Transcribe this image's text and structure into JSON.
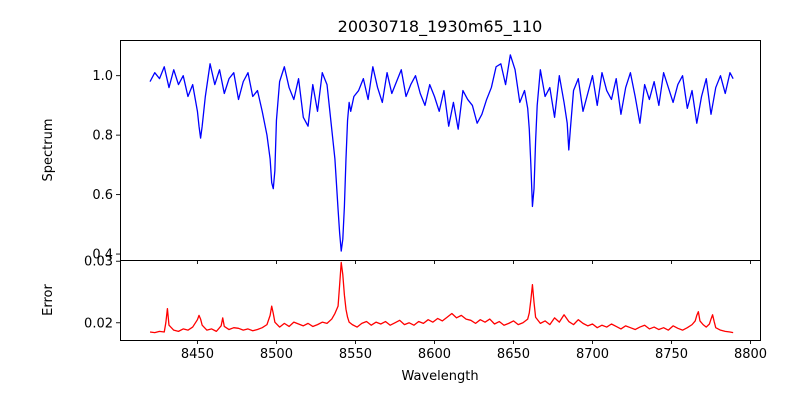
{
  "chart_data": [
    {
      "type": "line",
      "title": "20030718_1930m65_110",
      "xlabel": "",
      "ylabel": "Spectrum",
      "xlim": [
        8401,
        8806
      ],
      "ylim": [
        0.38,
        1.12
      ],
      "yticks": [
        0.4,
        0.6,
        0.8,
        1.0
      ],
      "ytick_labels": [
        "0.4",
        "0.6",
        "0.8",
        "1.0"
      ],
      "color": "#0000ff",
      "series": [
        {
          "x": [
            8420,
            8423,
            8426,
            8429,
            8432,
            8435,
            8438,
            8441,
            8444,
            8447,
            8450,
            8451,
            8452,
            8453,
            8454,
            8455,
            8458,
            8461,
            8464,
            8467,
            8470,
            8473,
            8476,
            8479,
            8482,
            8485,
            8488,
            8491,
            8494,
            8496,
            8497,
            8498,
            8499,
            8500,
            8502,
            8505,
            8508,
            8511,
            8514,
            8517,
            8520,
            8523,
            8526,
            8529,
            8532,
            8535,
            8537,
            8539,
            8540,
            8541,
            8542,
            8543,
            8544,
            8545,
            8546,
            8547,
            8549,
            8552,
            8555,
            8558,
            8561,
            8564,
            8567,
            8570,
            8573,
            8576,
            8579,
            8582,
            8585,
            8588,
            8591,
            8594,
            8597,
            8600,
            8603,
            8606,
            8609,
            8612,
            8615,
            8618,
            8621,
            8624,
            8627,
            8630,
            8633,
            8636,
            8639,
            8642,
            8645,
            8648,
            8651,
            8654,
            8657,
            8659,
            8660,
            8661,
            8662,
            8663,
            8664,
            8665,
            8667,
            8670,
            8673,
            8676,
            8679,
            8682,
            8684,
            8685,
            8686,
            8688,
            8691,
            8694,
            8697,
            8700,
            8703,
            8706,
            8709,
            8712,
            8715,
            8718,
            8721,
            8724,
            8727,
            8730,
            8733,
            8736,
            8739,
            8742,
            8745,
            8748,
            8751,
            8754,
            8757,
            8760,
            8763,
            8766,
            8769,
            8772,
            8775,
            8778,
            8781,
            8784,
            8787,
            8789
          ],
          "values": [
            0.98,
            1.01,
            0.99,
            1.03,
            0.96,
            1.02,
            0.97,
            1.0,
            0.93,
            0.97,
            0.88,
            0.83,
            0.79,
            0.83,
            0.88,
            0.93,
            1.04,
            0.97,
            1.02,
            0.94,
            0.99,
            1.01,
            0.92,
            0.98,
            1.01,
            0.93,
            0.95,
            0.88,
            0.8,
            0.72,
            0.64,
            0.62,
            0.68,
            0.85,
            0.98,
            1.03,
            0.96,
            0.92,
            0.99,
            0.86,
            0.83,
            0.97,
            0.88,
            1.01,
            0.97,
            0.82,
            0.72,
            0.55,
            0.47,
            0.41,
            0.45,
            0.56,
            0.72,
            0.85,
            0.91,
            0.88,
            0.93,
            0.95,
            0.99,
            0.92,
            1.03,
            0.96,
            0.91,
            1.01,
            0.94,
            0.98,
            1.02,
            0.93,
            0.97,
            1.0,
            0.94,
            0.9,
            0.97,
            0.93,
            0.88,
            0.95,
            0.83,
            0.91,
            0.82,
            0.95,
            0.92,
            0.9,
            0.84,
            0.87,
            0.92,
            0.96,
            1.03,
            1.04,
            0.97,
            1.07,
            1.02,
            0.91,
            0.95,
            0.89,
            0.82,
            0.7,
            0.56,
            0.62,
            0.78,
            0.9,
            1.02,
            0.93,
            0.96,
            0.86,
            1.0,
            0.91,
            0.84,
            0.75,
            0.82,
            0.95,
            0.99,
            0.88,
            0.94,
            1.0,
            0.9,
            1.01,
            0.95,
            0.92,
            0.99,
            0.87,
            0.96,
            1.01,
            0.93,
            0.84,
            0.97,
            0.92,
            0.98,
            0.9,
            1.01,
            0.96,
            0.91,
            0.97,
            1.0,
            0.89,
            0.95,
            0.84,
            0.93,
            0.99,
            0.87,
            0.96,
            1.0,
            0.94,
            1.01,
            0.99
          ]
        }
      ]
    },
    {
      "type": "line",
      "title": "",
      "xlabel": "Wavelength",
      "ylabel": "Error",
      "xlim": [
        8401,
        8806
      ],
      "ylim": [
        0.0172,
        0.0302
      ],
      "xticks": [
        8450,
        8500,
        8550,
        8600,
        8650,
        8700,
        8750,
        8800
      ],
      "xtick_labels": [
        "8450",
        "8500",
        "8550",
        "8600",
        "8650",
        "8700",
        "8750",
        "8800"
      ],
      "yticks": [
        0.02,
        0.03
      ],
      "ytick_labels": [
        "0.02",
        "0.03"
      ],
      "color": "#ff0000",
      "series": [
        {
          "x": [
            8420,
            8423,
            8426,
            8429,
            8430,
            8431,
            8432,
            8435,
            8438,
            8441,
            8444,
            8447,
            8450,
            8451,
            8452,
            8453,
            8456,
            8459,
            8462,
            8465,
            8466,
            8467,
            8470,
            8473,
            8476,
            8479,
            8482,
            8485,
            8488,
            8491,
            8494,
            8496,
            8497,
            8498,
            8499,
            8502,
            8505,
            8508,
            8511,
            8514,
            8517,
            8520,
            8523,
            8526,
            8529,
            8532,
            8535,
            8537,
            8539,
            8540,
            8541,
            8542,
            8543,
            8544,
            8545,
            8546,
            8548,
            8551,
            8554,
            8557,
            8560,
            8563,
            8566,
            8569,
            8572,
            8575,
            8578,
            8581,
            8584,
            8587,
            8590,
            8593,
            8596,
            8599,
            8602,
            8605,
            8608,
            8611,
            8614,
            8617,
            8620,
            8623,
            8626,
            8629,
            8632,
            8635,
            8638,
            8641,
            8644,
            8647,
            8650,
            8653,
            8656,
            8659,
            8660,
            8661,
            8662,
            8663,
            8664,
            8667,
            8670,
            8673,
            8676,
            8679,
            8682,
            8685,
            8688,
            8691,
            8694,
            8697,
            8700,
            8703,
            8706,
            8709,
            8712,
            8715,
            8718,
            8721,
            8724,
            8727,
            8730,
            8733,
            8736,
            8739,
            8742,
            8745,
            8748,
            8751,
            8754,
            8757,
            8760,
            8763,
            8765,
            8766,
            8767,
            8768,
            8770,
            8772,
            8774,
            8775,
            8776,
            8777,
            8778,
            8781,
            8784,
            8787,
            8789
          ],
          "values": [
            0.0185,
            0.0184,
            0.0186,
            0.0185,
            0.02,
            0.0223,
            0.0196,
            0.0188,
            0.0186,
            0.019,
            0.0188,
            0.0193,
            0.0205,
            0.0212,
            0.0206,
            0.0196,
            0.0188,
            0.019,
            0.0186,
            0.0195,
            0.0208,
            0.0194,
            0.0189,
            0.0192,
            0.0191,
            0.0188,
            0.019,
            0.0187,
            0.0189,
            0.0192,
            0.0197,
            0.0212,
            0.0227,
            0.0215,
            0.0201,
            0.0193,
            0.0199,
            0.0194,
            0.0201,
            0.0198,
            0.0195,
            0.0199,
            0.0194,
            0.0197,
            0.0201,
            0.0199,
            0.0206,
            0.0215,
            0.0227,
            0.0262,
            0.0298,
            0.0278,
            0.0245,
            0.0222,
            0.0209,
            0.0201,
            0.0197,
            0.0193,
            0.0199,
            0.0202,
            0.0196,
            0.0201,
            0.0198,
            0.0202,
            0.0196,
            0.02,
            0.0204,
            0.0197,
            0.02,
            0.0196,
            0.0202,
            0.0199,
            0.0205,
            0.0201,
            0.0207,
            0.0203,
            0.0209,
            0.0215,
            0.0208,
            0.0212,
            0.0206,
            0.0204,
            0.0199,
            0.0205,
            0.0201,
            0.0206,
            0.0198,
            0.0202,
            0.0196,
            0.0199,
            0.0203,
            0.0197,
            0.02,
            0.0206,
            0.0216,
            0.0237,
            0.0262,
            0.0233,
            0.0209,
            0.0199,
            0.0203,
            0.0197,
            0.0208,
            0.0201,
            0.0213,
            0.0202,
            0.0197,
            0.0205,
            0.0199,
            0.0195,
            0.0198,
            0.0192,
            0.0196,
            0.0193,
            0.0198,
            0.0194,
            0.019,
            0.0195,
            0.0192,
            0.0189,
            0.0193,
            0.0196,
            0.019,
            0.0193,
            0.0189,
            0.0192,
            0.0188,
            0.0195,
            0.0191,
            0.0188,
            0.0192,
            0.0197,
            0.0203,
            0.0212,
            0.0218,
            0.0203,
            0.0197,
            0.0193,
            0.0198,
            0.0206,
            0.0213,
            0.0202,
            0.0192,
            0.0188,
            0.0186,
            0.0185,
            0.0184
          ]
        }
      ]
    }
  ]
}
